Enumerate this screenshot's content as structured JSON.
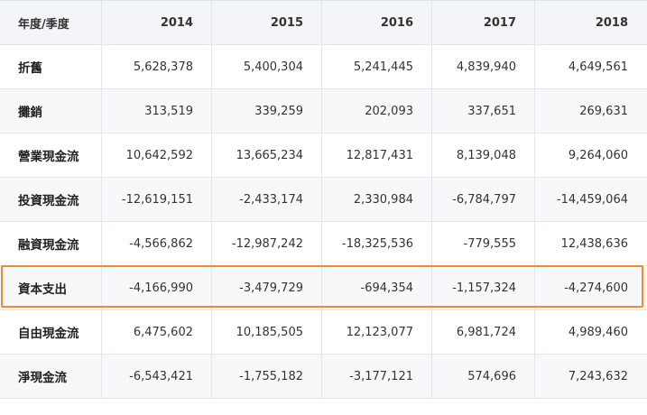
{
  "header": [
    "年度/季度",
    "2014",
    "2015",
    "2016",
    "2017",
    "2018"
  ],
  "rows": [
    {
      "label": "折舊",
      "values": [
        "5,628,378",
        "5,400,304",
        "5,241,445",
        "4,839,940",
        "4,649,561"
      ]
    },
    {
      "label": "攤銷",
      "values": [
        "313,519",
        "339,259",
        "202,093",
        "337,651",
        "269,631"
      ]
    },
    {
      "label": "營業現金流",
      "values": [
        "10,642,592",
        "13,665,234",
        "12,817,431",
        "8,139,048",
        "9,264,060"
      ]
    },
    {
      "label": "投資現金流",
      "values": [
        "-12,619,151",
        "-2,433,174",
        "2,330,984",
        "-6,784,797",
        "-14,459,064"
      ]
    },
    {
      "label": "融資現金流",
      "values": [
        "-4,566,862",
        "-12,987,242",
        "-18,325,536",
        "-779,555",
        "12,438,636"
      ]
    },
    {
      "label": "資本支出",
      "values": [
        "-4,166,990",
        "-3,479,729",
        "-694,354",
        "-1,157,324",
        "-4,274,600"
      ],
      "highlighted": true
    },
    {
      "label": "自由現金流",
      "values": [
        "6,475,602",
        "10,185,505",
        "12,123,077",
        "6,981,724",
        "4,989,460"
      ]
    },
    {
      "label": "淨現金流",
      "values": [
        "-6,543,421",
        "-1,755,182",
        "-3,177,121",
        "574,696",
        "7,243,632"
      ]
    }
  ],
  "highlight_color": "#ef8a2f"
}
